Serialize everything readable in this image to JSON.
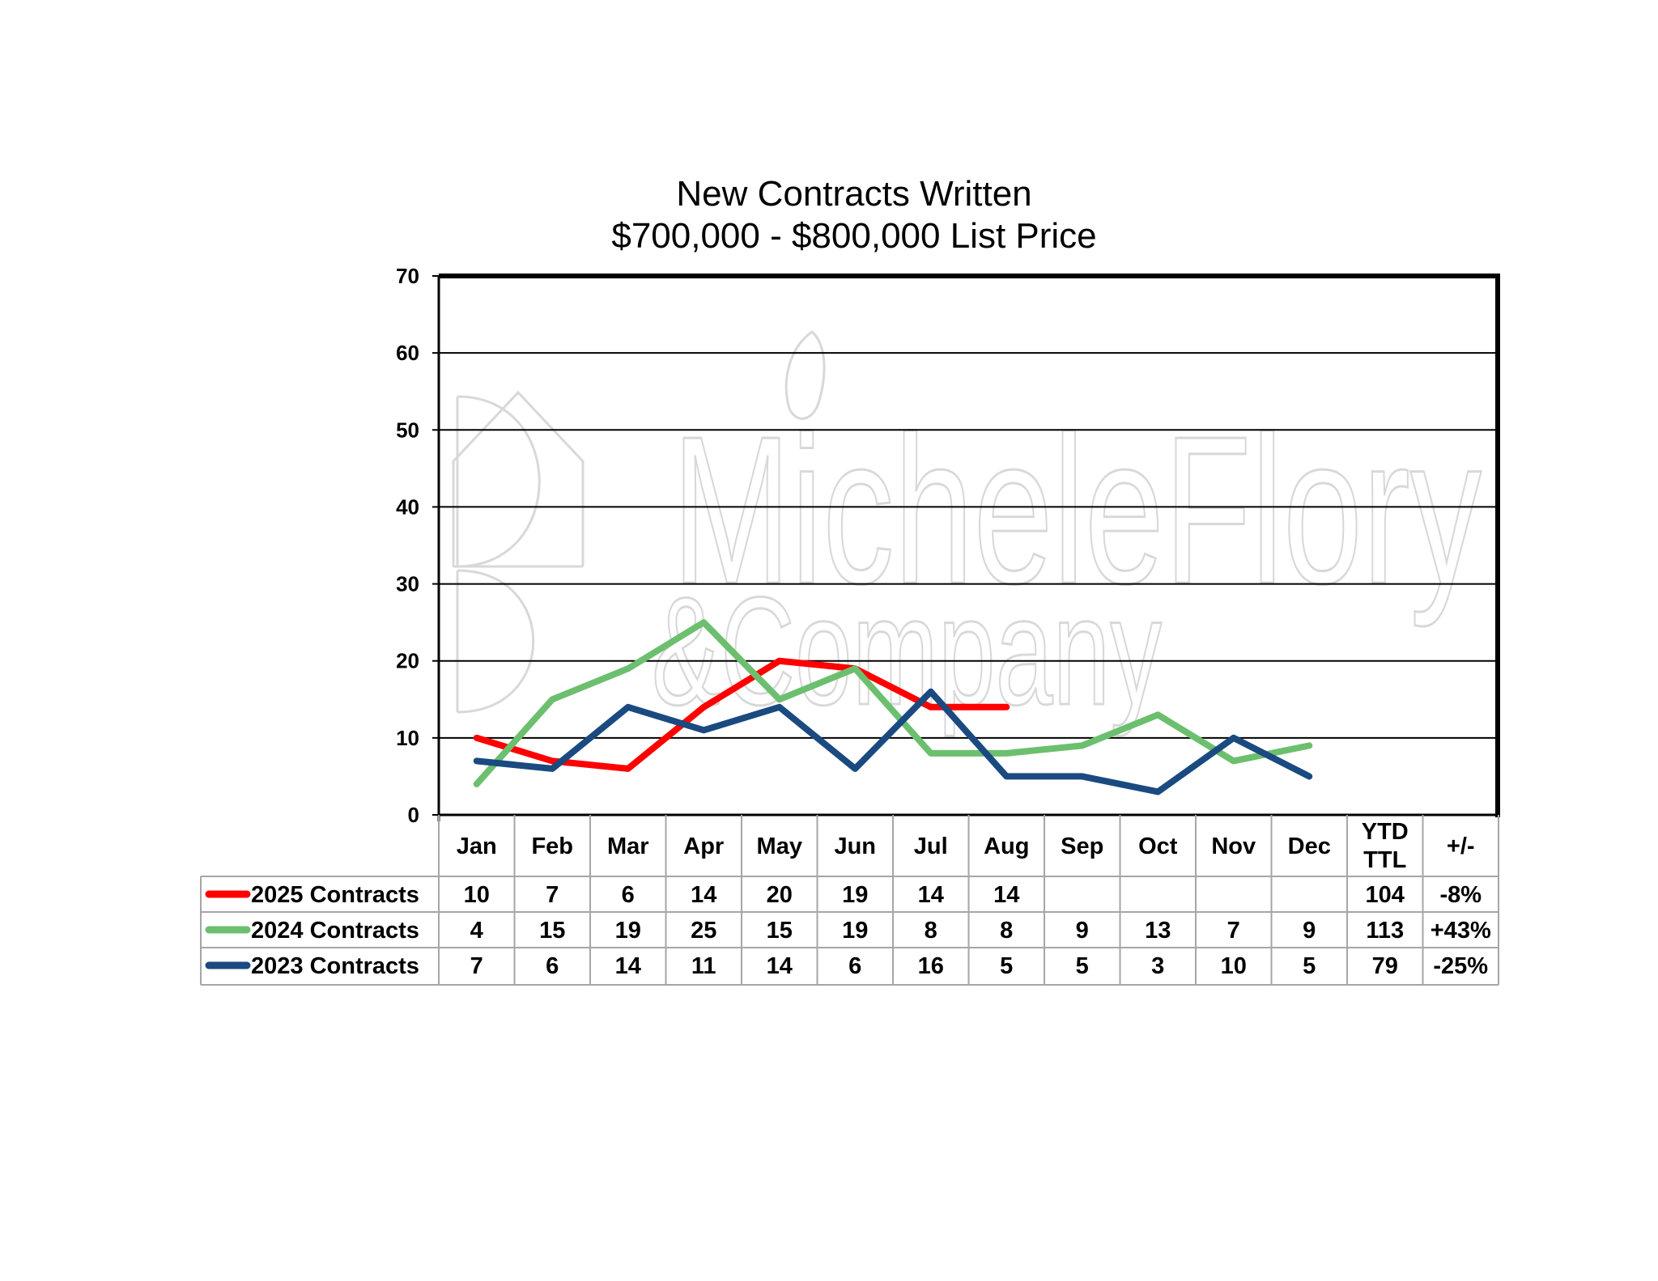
{
  "chart_data": {
    "type": "line",
    "title": "New Contracts Written",
    "subtitle": "$700,000 - $800,000 List Price",
    "categories": [
      "Jan",
      "Feb",
      "Mar",
      "Apr",
      "May",
      "Jun",
      "Jul",
      "Aug",
      "Sep",
      "Oct",
      "Nov",
      "Dec"
    ],
    "extra_columns": [
      "YTD TTL",
      "+/-"
    ],
    "ylim": [
      0,
      70
    ],
    "yticks": [
      "0",
      "10",
      "20",
      "30",
      "40",
      "50",
      "60",
      "70"
    ],
    "grid": true,
    "series": [
      {
        "name": "2025 Contracts",
        "color": "#ff0000",
        "values": [
          10,
          7,
          6,
          14,
          20,
          19,
          14,
          14,
          null,
          null,
          null,
          null
        ],
        "labels": [
          "10",
          "7",
          "6",
          "14",
          "20",
          "19",
          "14",
          "14",
          "",
          "",
          "",
          ""
        ],
        "ytd": "104",
        "change": "-8%"
      },
      {
        "name": "2024 Contracts",
        "color": "#6cbf6e",
        "values": [
          4,
          15,
          19,
          25,
          15,
          19,
          8,
          8,
          9,
          13,
          7,
          9
        ],
        "labels": [
          "4",
          "15",
          "19",
          "25",
          "15",
          "19",
          "8",
          "8",
          "9",
          "13",
          "7",
          "9"
        ],
        "ytd": "113",
        "change": "+43%"
      },
      {
        "name": "2023 Contracts",
        "color": "#1a4a80",
        "values": [
          7,
          6,
          14,
          11,
          14,
          6,
          16,
          5,
          5,
          3,
          10,
          5
        ],
        "labels": [
          "7",
          "6",
          "14",
          "11",
          "14",
          "6",
          "16",
          "5",
          "5",
          "3",
          "10",
          "5"
        ],
        "ytd": "79",
        "change": "-25%"
      }
    ]
  },
  "watermark": {
    "line1": "MicheleFlory",
    "line2": "&Company"
  }
}
